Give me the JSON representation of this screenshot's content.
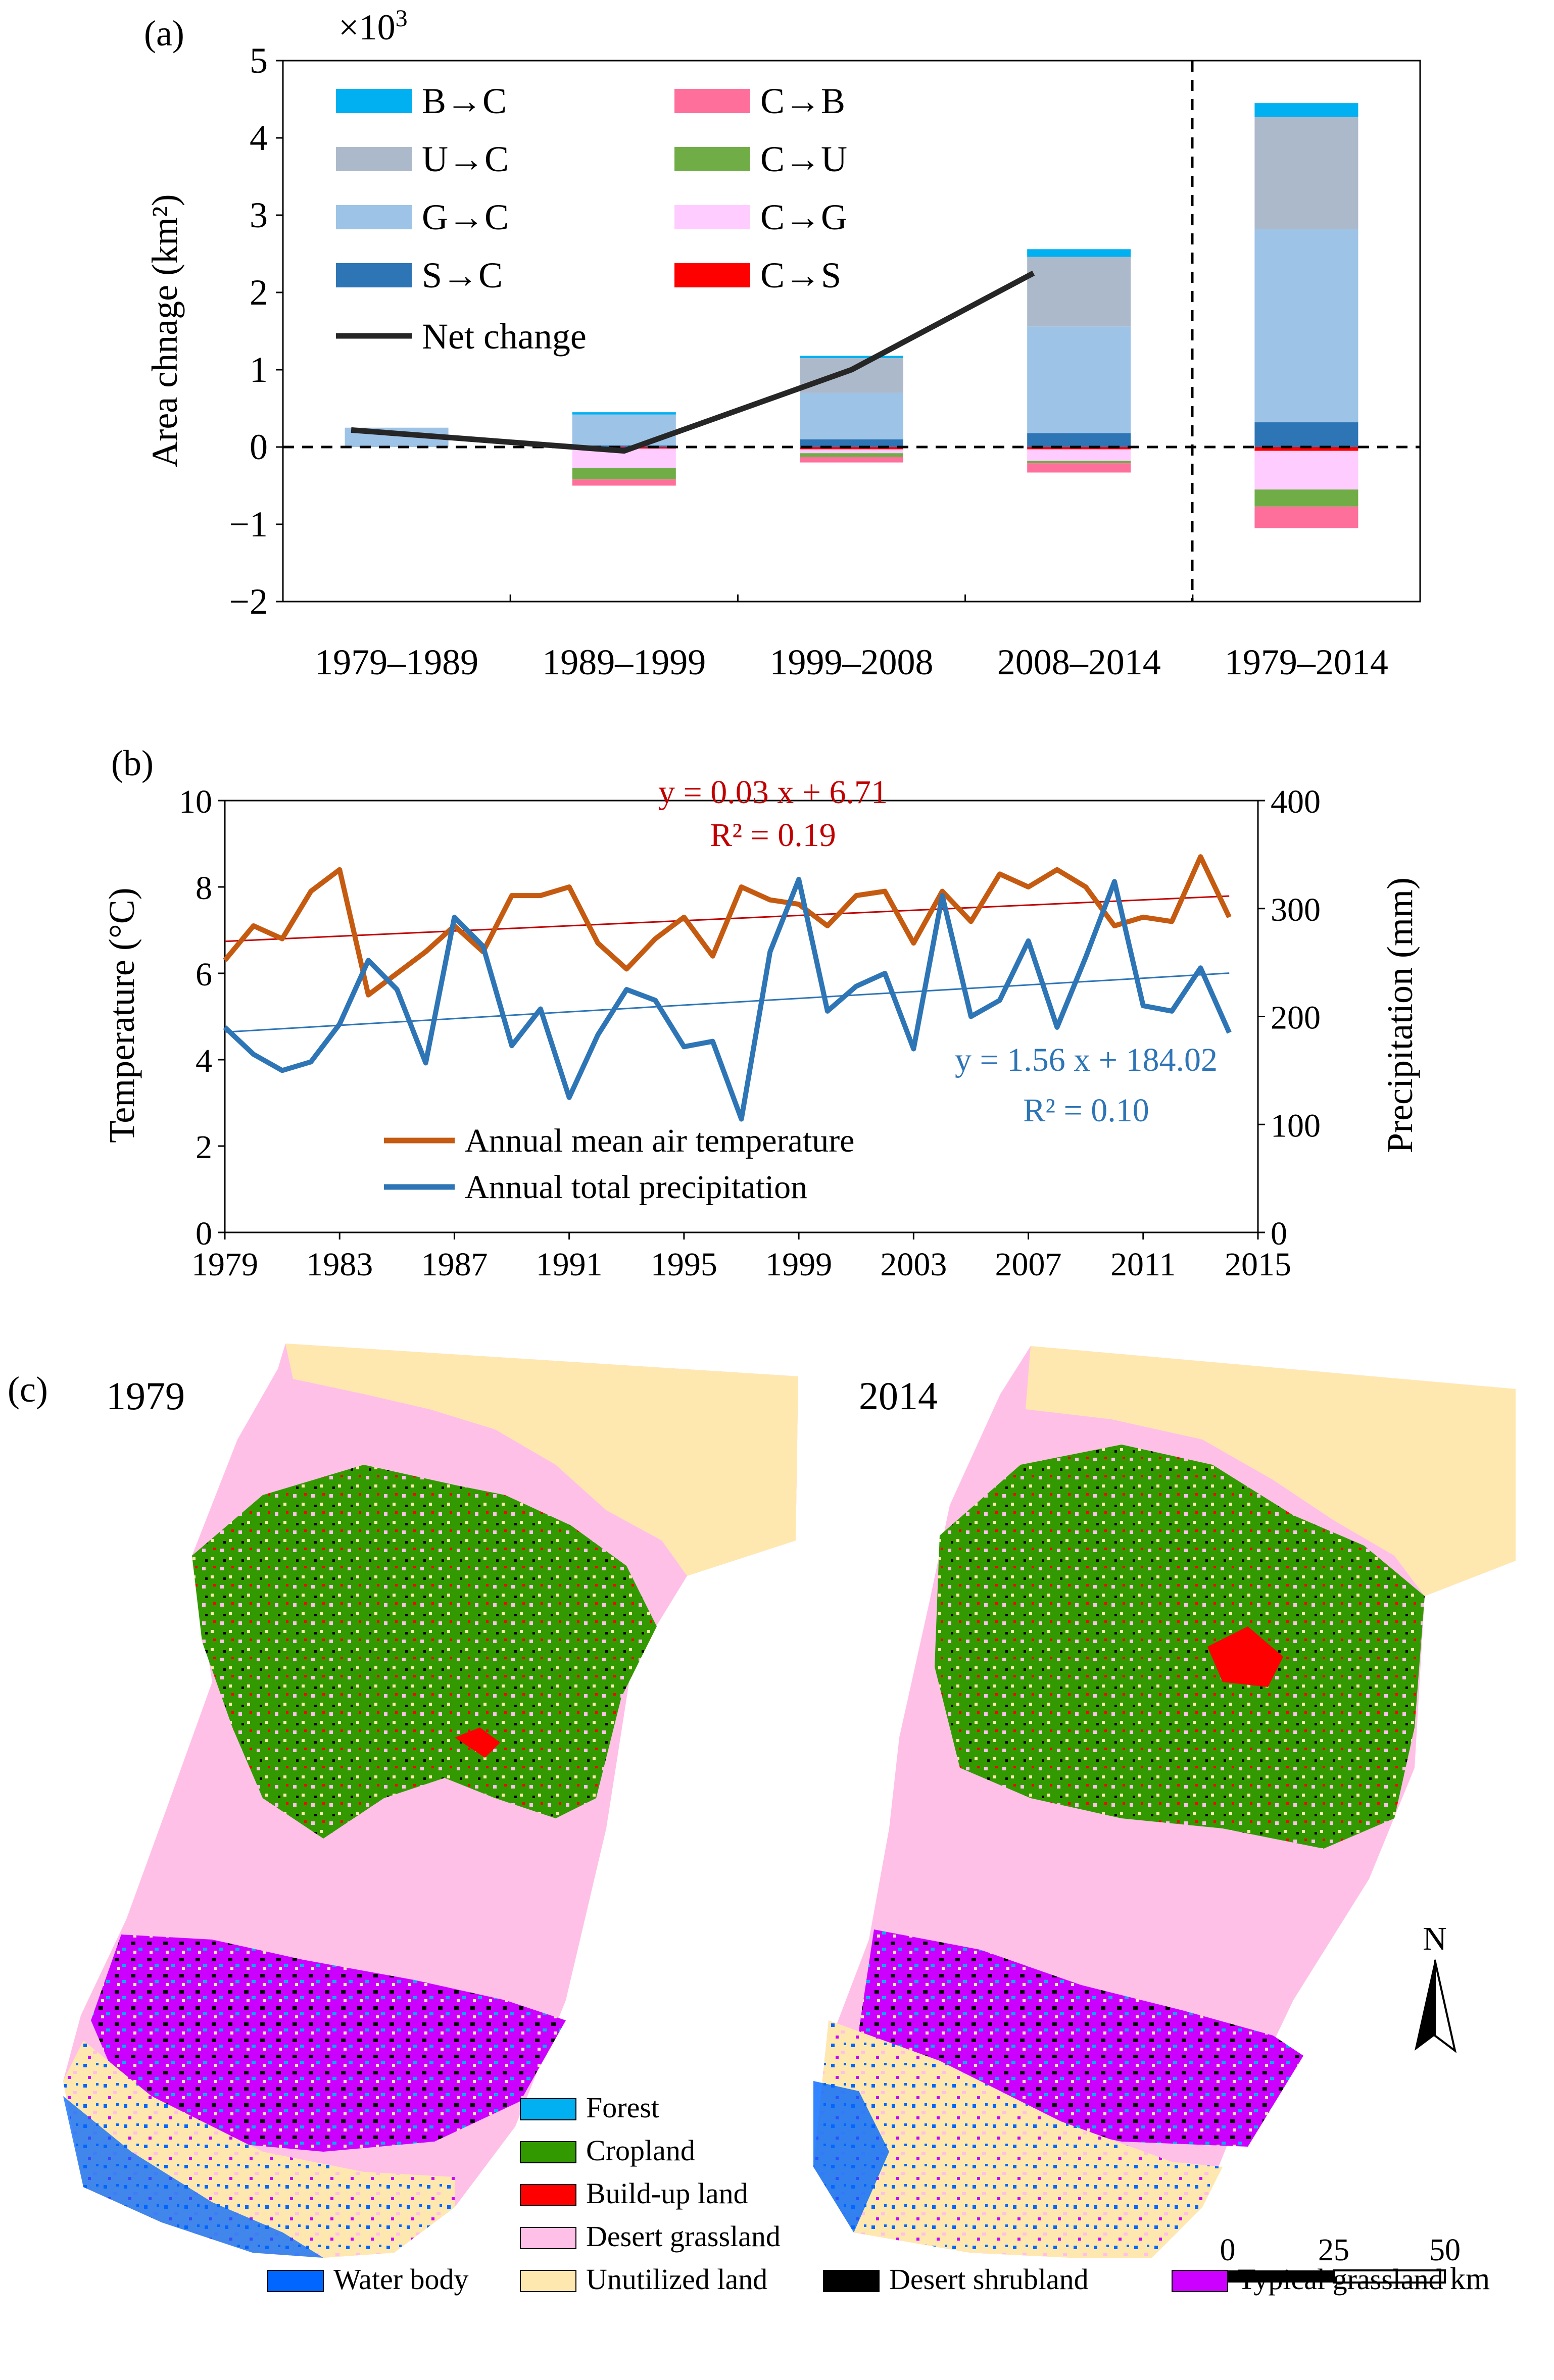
{
  "figure": {
    "panel_a": {
      "tag": "(a)",
      "multiplier_base": "×10",
      "multiplier_exp": "3"
    },
    "panel_b": {
      "tag": "(b)"
    },
    "panel_c": {
      "tag": "(c)"
    }
  },
  "chart_data": [
    {
      "id": "a",
      "type": "bar",
      "stacked": true,
      "title": "",
      "xlabel": "",
      "ylabel": "Area chnage (km²)",
      "y_multiplier": "×10³",
      "ylim": [
        -2,
        5
      ],
      "yticks": [
        -2,
        -1,
        0,
        1,
        2,
        3,
        4,
        5
      ],
      "categories": [
        "1979–1989",
        "1989–1999",
        "1999–2008",
        "2008–2014",
        "1979–2014"
      ],
      "positive_series": [
        {
          "name": "S→C",
          "color": "#2e75b6",
          "values": [
            0.0,
            0.02,
            0.1,
            0.18,
            0.32
          ]
        },
        {
          "name": "G→C",
          "color": "#9dc3e6",
          "values": [
            0.25,
            0.4,
            0.6,
            1.38,
            2.5
          ]
        },
        {
          "name": "U→C",
          "color": "#acb9ca",
          "values": [
            0.0,
            0.0,
            0.45,
            0.9,
            1.45
          ]
        },
        {
          "name": "B→C",
          "color": "#00b0f0",
          "values": [
            0.0,
            0.03,
            0.03,
            0.1,
            0.18
          ]
        }
      ],
      "negative_series": [
        {
          "name": "C→S",
          "color": "#ff0000",
          "values": [
            0.0,
            -0.02,
            -0.03,
            -0.03,
            -0.05
          ]
        },
        {
          "name": "C→G",
          "color": "#ffccff",
          "values": [
            0.0,
            -0.25,
            -0.05,
            -0.15,
            -0.5
          ]
        },
        {
          "name": "C→U",
          "color": "#70ad47",
          "values": [
            0.0,
            -0.15,
            -0.05,
            -0.03,
            -0.22
          ]
        },
        {
          "name": "C→B",
          "color": "#ff6f9c",
          "values": [
            0.0,
            -0.08,
            -0.07,
            -0.12,
            -0.28
          ]
        }
      ],
      "net_change": {
        "name": "Net change",
        "color": "#262626",
        "x": [
          "1979–1989",
          "1989–1999",
          "1999–2008",
          "2008–2014"
        ],
        "values": [
          0.22,
          -0.05,
          1.0,
          2.25
        ]
      },
      "legend": [
        "B→C",
        "C→B",
        "U→C",
        "C→U",
        "G→C",
        "C→G",
        "S→C",
        "C→S",
        "Net change"
      ],
      "legend_position": "top-left",
      "divider_before": "1979–2014"
    },
    {
      "id": "b",
      "type": "line",
      "title": "",
      "xlabel": "",
      "ylabel": "Temperature (°C)",
      "ylabel_right": "Precipitation (mm)",
      "xlim": [
        1979,
        2015
      ],
      "xticks": [
        1979,
        1983,
        1987,
        1991,
        1995,
        1999,
        2003,
        2007,
        2011,
        2015
      ],
      "ylim": [
        0,
        10
      ],
      "yticks": [
        0,
        2,
        4,
        6,
        8,
        10
      ],
      "ylim_right": [
        0,
        400
      ],
      "yticks_right": [
        0,
        100,
        200,
        300,
        400
      ],
      "x": [
        1979,
        1980,
        1981,
        1982,
        1983,
        1984,
        1985,
        1986,
        1987,
        1988,
        1989,
        1990,
        1991,
        1992,
        1993,
        1994,
        1995,
        1996,
        1997,
        1998,
        1999,
        2000,
        2001,
        2002,
        2003,
        2004,
        2005,
        2006,
        2007,
        2008,
        2009,
        2010,
        2011,
        2012,
        2013,
        2014
      ],
      "series": [
        {
          "name": "Annual mean air temperature",
          "axis": "left",
          "color": "#c55a11",
          "values": [
            6.3,
            7.1,
            6.8,
            7.9,
            8.4,
            5.5,
            6.0,
            6.5,
            7.1,
            6.5,
            7.8,
            7.8,
            8.0,
            6.7,
            6.1,
            6.8,
            7.3,
            6.4,
            8.0,
            7.7,
            7.6,
            7.1,
            7.8,
            7.9,
            6.7,
            7.9,
            7.2,
            8.3,
            8.0,
            8.4,
            8.0,
            7.1,
            7.3,
            7.2,
            8.7,
            7.3
          ],
          "trend": {
            "equation": "y = 0.03 x + 6.71",
            "r2": "R² = 0.19",
            "slope": 0.03,
            "intercept": 6.71,
            "color": "#c00000"
          }
        },
        {
          "name": "Annual total precipitation",
          "axis": "right",
          "color": "#2e75b6",
          "values": [
            190,
            165,
            150,
            158,
            193,
            252,
            225,
            157,
            292,
            265,
            173,
            207,
            125,
            183,
            225,
            215,
            172,
            177,
            105,
            260,
            327,
            205,
            228,
            240,
            170,
            312,
            200,
            215,
            270,
            190,
            255,
            325,
            210,
            205,
            245,
            185
          ],
          "trend": {
            "equation": "y = 1.56 x + 184.02",
            "r2": "R² = 0.10",
            "slope": 1.56,
            "intercept": 184.02,
            "color": "#2e75b6"
          }
        }
      ],
      "legend_position": "bottom-left"
    }
  ],
  "maps": {
    "left_year": "1979",
    "right_year": "2014",
    "north_label": "N",
    "scale": {
      "ticks": [
        "0",
        "25",
        "50"
      ],
      "unit": "km"
    },
    "legend_column": [
      {
        "name": "Forest",
        "color": "#00b0f0"
      },
      {
        "name": "Cropland",
        "color": "#339900"
      },
      {
        "name": "Build-up land",
        "color": "#ff0000"
      },
      {
        "name": "Desert grassland",
        "color": "#ffc0e8"
      }
    ],
    "legend_row": [
      {
        "name": "Water body",
        "color": "#0066ff"
      },
      {
        "name": "Unutilized land",
        "color": "#ffe8b0"
      },
      {
        "name": "Desert shrubland",
        "color": "#000000"
      },
      {
        "name": "Typical grassland",
        "color": "#cc00ff"
      }
    ]
  }
}
